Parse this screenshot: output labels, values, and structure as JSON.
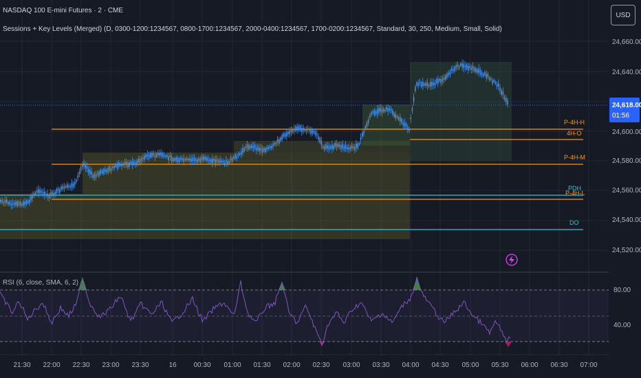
{
  "header": {
    "symbol_title": "NASDAQ 100 E-mini Futures · 2 · CME",
    "indicator_title": "Sessions + Key Levels (Merged) (D, 0300-1200:1234567, 0800-1700:1234567, 2000-0400:1234567, 1700-0200:1234567, Standard, 30, 250, Medium, Small, Solid)",
    "currency_button": "USD"
  },
  "price_axis": {
    "ticks": [
      "24,660.00",
      "24,640.00",
      "24,620.00",
      "24,600.00",
      "24,580.00",
      "24,560.00",
      "24,540.00",
      "24,520.00"
    ],
    "current_price": "24,618.00",
    "countdown": "01:56"
  },
  "time_axis": {
    "ticks": [
      "21:30",
      "22:00",
      "22:30",
      "23:00",
      "23:30",
      "16",
      "00:30",
      "01:00",
      "01:30",
      "02:00",
      "02:30",
      "03:00",
      "03:30",
      "04:00",
      "04:30",
      "05:00",
      "05:30",
      "06:00",
      "06:30",
      "07:00"
    ]
  },
  "key_levels": [
    {
      "label": "P-4H-H",
      "color": "#ff9800"
    },
    {
      "label": "4H-O",
      "color": "#ff9800"
    },
    {
      "label": "P-4H-M",
      "color": "#ff9800"
    },
    {
      "label": "PDH",
      "color": "#26c6da"
    },
    {
      "label": "P-4H-L",
      "color": "#ff9800"
    },
    {
      "label": "DO",
      "color": "#26c6da"
    }
  ],
  "rsi": {
    "title": "RSI (6, close, SMA, 6, 2)",
    "ticks": [
      "80.00",
      "40.00"
    ]
  },
  "colors": {
    "background": "#161a25",
    "candles": "#4a90e2",
    "rsi_line": "#7e57c2",
    "current_price_badge": "#2962ff"
  }
}
